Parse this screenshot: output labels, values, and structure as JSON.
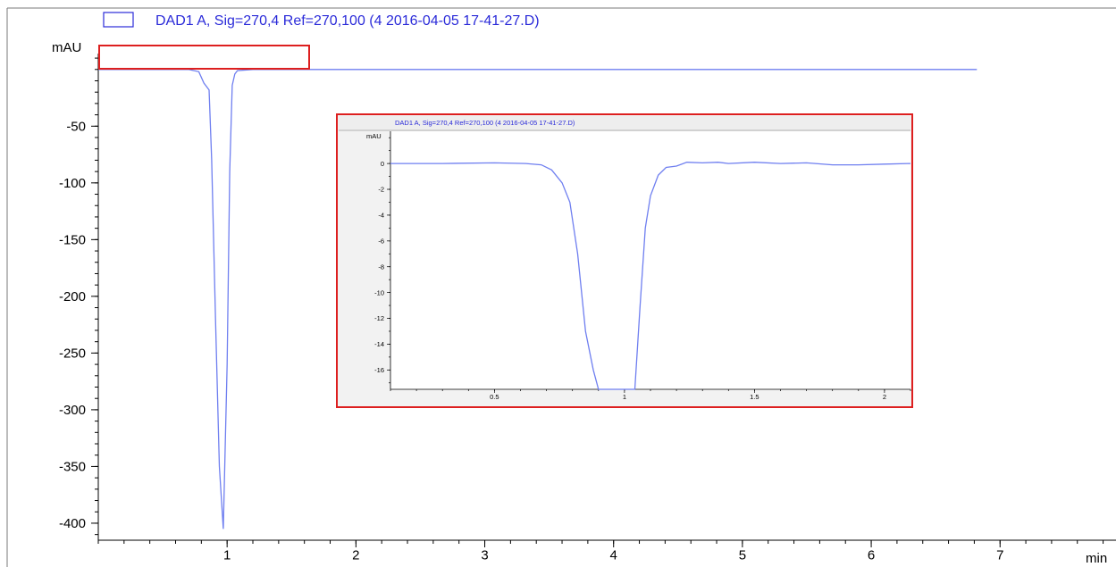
{
  "chart_data": [
    {
      "type": "line",
      "legend": "DAD1 A, Sig=270,4 Ref=270,100 (4 2016-04-05 17-41-27.D)",
      "ylabel": "mAU",
      "xlabel": "min",
      "xlim": [
        0,
        7.9
      ],
      "ylim": [
        -415,
        14
      ],
      "x_ticks": [
        1,
        2,
        3,
        4,
        5,
        6,
        7
      ],
      "y_ticks": [
        -50,
        -100,
        -150,
        -200,
        -250,
        -300,
        -350,
        -400
      ],
      "line_color": "#6f7ff0",
      "series": [
        {
          "x": [
            0.0,
            0.5,
            0.7,
            0.78,
            0.82,
            0.86,
            0.88,
            0.91,
            0.94,
            0.97,
            1.0,
            1.02,
            1.04,
            1.06,
            1.08,
            1.2,
            2.0,
            3.0,
            4.0,
            5.0,
            6.0,
            6.82
          ],
          "y": [
            0,
            0,
            0,
            -2,
            -12,
            -18,
            -80,
            -220,
            -350,
            -405,
            -260,
            -90,
            -14,
            -4,
            -1,
            0,
            0,
            0,
            0,
            0,
            0,
            0
          ]
        }
      ]
    },
    {
      "type": "line",
      "legend": "DAD1 A, Sig=270,4 Ref=270,100 (4 2016-04-05 17-41-27.D)",
      "ylabel": "mAU",
      "xlabel": "",
      "xlim": [
        0.1,
        2.1
      ],
      "ylim": [
        -17.5,
        2.5
      ],
      "x_ticks": [
        0.5,
        1,
        1.5,
        2
      ],
      "x_tick_labels": [
        "0.5",
        "1",
        "1.5",
        "2"
      ],
      "y_ticks": [
        0,
        -2,
        -4,
        -6,
        -8,
        -10,
        -12,
        -14,
        -16
      ],
      "line_color": "#6f7ff0",
      "series": [
        {
          "x": [
            0.1,
            0.3,
            0.5,
            0.62,
            0.68,
            0.72,
            0.76,
            0.79,
            0.82,
            0.85,
            0.88,
            0.9,
            0.92,
            1.04,
            1.06,
            1.08,
            1.1,
            1.13,
            1.16,
            1.2,
            1.24,
            1.3,
            1.36,
            1.4,
            1.5,
            1.6,
            1.7,
            1.8,
            1.9,
            2.0,
            2.1
          ],
          "y": [
            0,
            0,
            0.05,
            0,
            -0.1,
            -0.5,
            -1.5,
            -3,
            -7,
            -13,
            -16,
            -17.5,
            -17.5,
            -17.5,
            -11,
            -5,
            -2.5,
            -0.9,
            -0.3,
            -0.2,
            0.1,
            0.05,
            0.1,
            0.0,
            0.1,
            0.0,
            0.05,
            -0.1,
            -0.1,
            -0.05,
            0
          ]
        }
      ]
    }
  ]
}
